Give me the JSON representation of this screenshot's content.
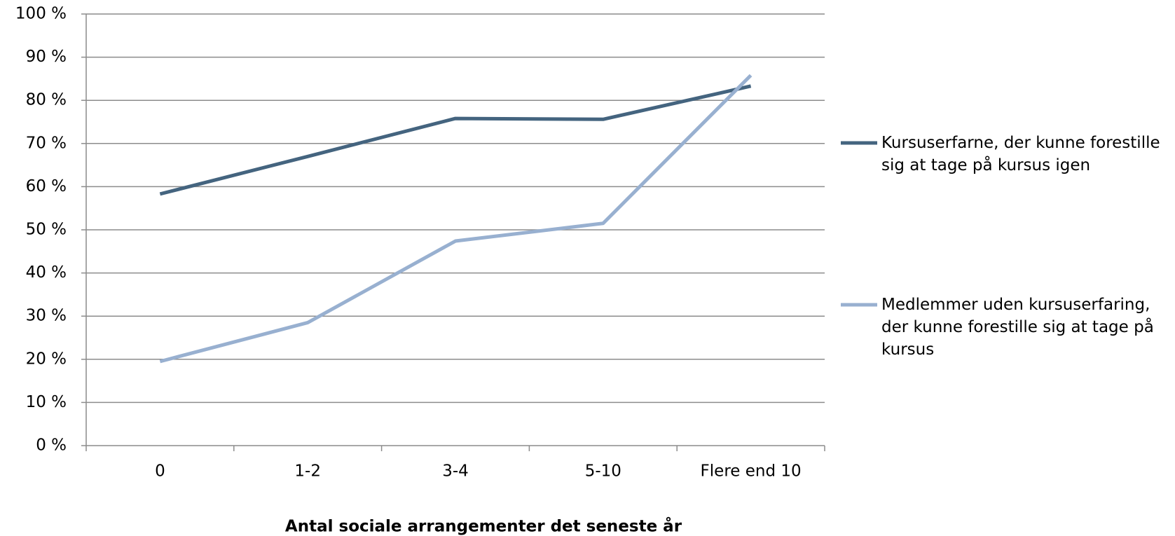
{
  "chart_data": {
    "type": "line",
    "x_label": "Antal sociale arrangementer det seneste år",
    "categories": [
      "0",
      "1-2",
      "3-4",
      "5-10",
      "Flere end 10"
    ],
    "series": [
      {
        "name": "Kursuserfarne, der kunne forestille sig at tage på kursus igen",
        "color": "#44647f",
        "values": [
          58.3,
          67,
          75.8,
          75.6,
          83.3
        ]
      },
      {
        "name": "Medlemmer uden kursuserfaring, der kunne forestille sig at tage på kursus",
        "color": "#98b0d0",
        "values": [
          19.5,
          28.5,
          47.4,
          51.5,
          85.8
        ]
      }
    ],
    "ylim": [
      0,
      100
    ],
    "yticks": [
      {
        "value": 0,
        "label": "0 %"
      },
      {
        "value": 10,
        "label": "10 %"
      },
      {
        "value": 20,
        "label": "20 %"
      },
      {
        "value": 30,
        "label": "30 %"
      },
      {
        "value": 40,
        "label": "40 %"
      },
      {
        "value": 50,
        "label": "50 %"
      },
      {
        "value": 60,
        "label": "60 %"
      },
      {
        "value": 70,
        "label": "70 %"
      },
      {
        "value": 80,
        "label": "80 %"
      },
      {
        "value": 90,
        "label": "90 %"
      },
      {
        "value": 100,
        "label": "100 %"
      }
    ],
    "grid": true,
    "legend": "right"
  }
}
